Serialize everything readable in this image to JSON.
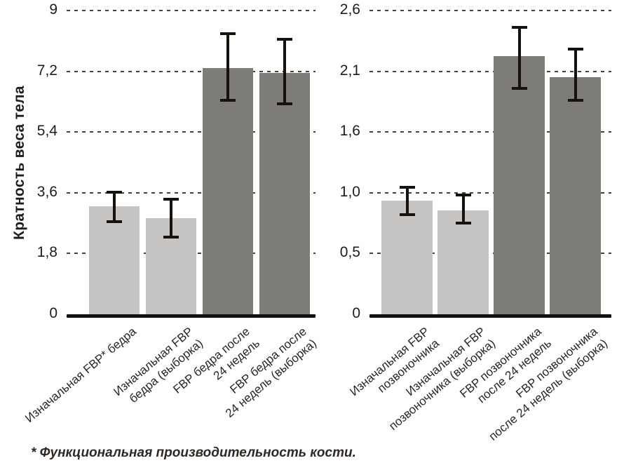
{
  "y_axis_title": "Кратность веса тела",
  "footnote": {
    "text": "* Функциональная производительность кости."
  },
  "colors": {
    "bar_light": "#c6c5c3",
    "bar_dark": "#7e7c79",
    "ink": "#17120e",
    "grid": "#46413c",
    "background": "#ffffff"
  },
  "chart_data": [
    {
      "type": "bar",
      "title": "",
      "xlabel": "",
      "ylabel": "Кратность веса тела",
      "ylim": [
        0,
        9
      ],
      "yticks": [
        "0",
        "1,8",
        "3,6",
        "5,4",
        "7,2",
        "9"
      ],
      "grid": "horizontal-dashed",
      "legend": "none",
      "categories": [
        "Изначальная FBP* бедра",
        "Изначальная FBP\nбедра (выборка)",
        "FBP бедра после\n24 недель",
        "FBP бедра после\n24 недель (выборка)"
      ],
      "values": [
        3.2,
        2.85,
        7.3,
        7.15
      ],
      "errors_low": [
        2.7,
        2.25,
        6.3,
        6.2
      ],
      "errors_high": [
        3.65,
        3.45,
        8.35,
        8.2
      ],
      "bar_styles": [
        "light",
        "light",
        "dark",
        "dark"
      ]
    },
    {
      "type": "bar",
      "title": "",
      "xlabel": "",
      "ylabel": "Кратность веса тела",
      "ylim": [
        0,
        2.6
      ],
      "yticks": [
        "0",
        "0,5",
        "1,0",
        "1,6",
        "2,1",
        "2,6"
      ],
      "grid": "horizontal-dashed",
      "legend": "none",
      "categories": [
        "Изначальная FBP\nпозвоночника",
        "Изначальная FBP\nпозвоночника (выборка)",
        "FBP позвоночника\nпосле 24 недель",
        "FBP позвоночника\nпосле 24 недель (выборка)"
      ],
      "values": [
        0.97,
        0.89,
        2.21,
        2.03
      ],
      "errors_low": [
        0.84,
        0.77,
        1.92,
        1.82
      ],
      "errors_high": [
        1.1,
        1.03,
        2.47,
        2.28
      ],
      "bar_styles": [
        "light",
        "light",
        "dark",
        "dark"
      ]
    }
  ]
}
